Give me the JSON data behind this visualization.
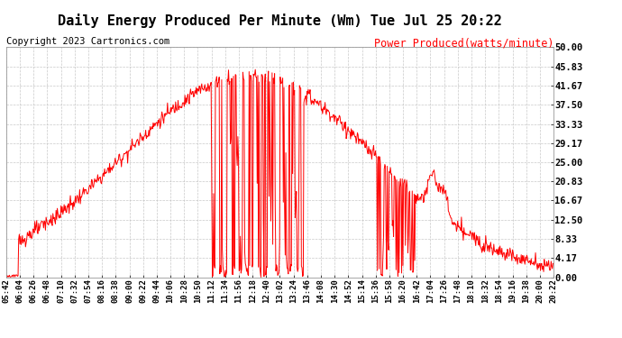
{
  "title": "Daily Energy Produced Per Minute (Wm) Tue Jul 25 20:22",
  "copyright": "Copyright 2023 Cartronics.com",
  "legend_label": "Power Produced(watts/minute)",
  "ylim": [
    0,
    50
  ],
  "yticks": [
    0,
    4.17,
    8.33,
    12.5,
    16.67,
    20.83,
    25.0,
    29.17,
    33.33,
    37.5,
    41.67,
    45.83,
    50.0
  ],
  "ytick_labels": [
    "0.00",
    "4.17",
    "8.33",
    "12.50",
    "16.67",
    "20.83",
    "25.00",
    "29.17",
    "33.33",
    "37.50",
    "41.67",
    "45.83",
    "50.00"
  ],
  "line_color": "red",
  "background_color": "#ffffff",
  "grid_color": "#bbbbbb",
  "title_fontsize": 11,
  "copyright_fontsize": 7.5,
  "legend_fontsize": 8.5,
  "xtick_labels": [
    "05:42",
    "06:04",
    "06:26",
    "06:48",
    "07:10",
    "07:32",
    "07:54",
    "08:16",
    "08:38",
    "09:00",
    "09:22",
    "09:44",
    "10:06",
    "10:28",
    "10:50",
    "11:12",
    "11:34",
    "11:56",
    "12:18",
    "12:40",
    "13:02",
    "13:24",
    "13:46",
    "14:08",
    "14:30",
    "14:52",
    "15:14",
    "15:36",
    "15:58",
    "16:20",
    "16:42",
    "17:04",
    "17:26",
    "17:48",
    "18:10",
    "18:32",
    "18:54",
    "19:16",
    "19:38",
    "20:00",
    "20:22"
  ]
}
